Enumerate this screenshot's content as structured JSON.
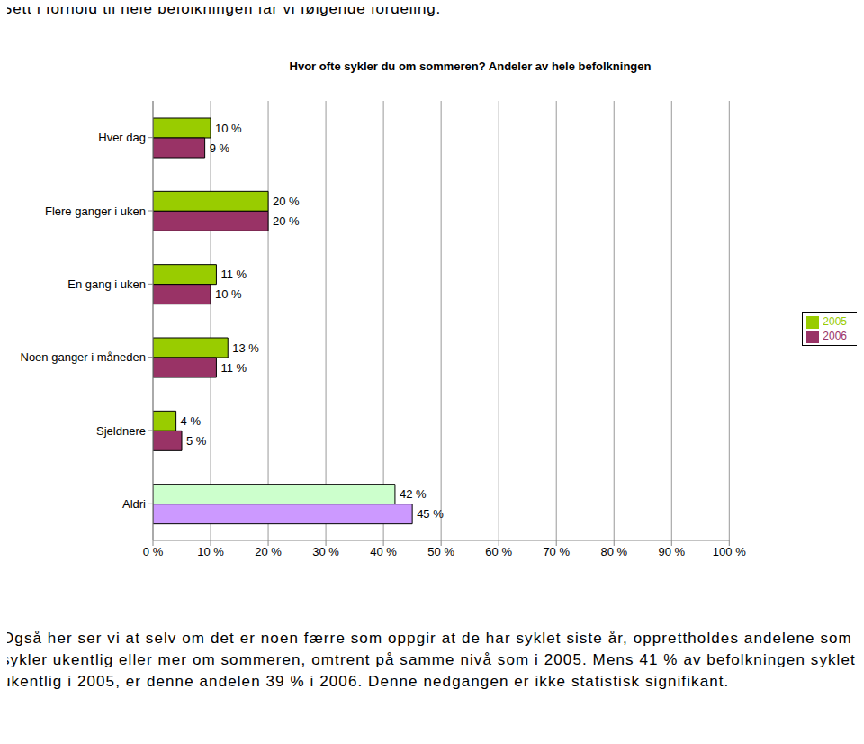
{
  "header": "Sett i forhold til hele befolkningen får vi følgende fordeling.",
  "chart_data": {
    "type": "bar",
    "orientation": "horizontal",
    "title": "Hvor ofte sykler du om sommeren? Andeler av hele befolkningen",
    "categories": [
      "Hver dag",
      "Flere ganger i uken",
      "En gang i uken",
      "Noen ganger i måneden",
      "Sjeldnere",
      "Aldri"
    ],
    "series": [
      {
        "name": "2005",
        "color": "#99cc00",
        "colors": [
          "#99cc00",
          "#99cc00",
          "#99cc00",
          "#99cc00",
          "#99cc00",
          "#ccffcc"
        ],
        "values": [
          10,
          20,
          11,
          13,
          4,
          42
        ],
        "value_labels": [
          "10 %",
          "20 %",
          "11 %",
          "13 %",
          "4 %",
          "42 %"
        ]
      },
      {
        "name": "2006",
        "color": "#993366",
        "colors": [
          "#993366",
          "#993366",
          "#993366",
          "#993366",
          "#993366",
          "#cc99ff"
        ],
        "values": [
          9,
          20,
          10,
          11,
          5,
          45
        ],
        "value_labels": [
          "9 %",
          "20 %",
          "10 %",
          "11 %",
          "5 %",
          "45 %"
        ]
      }
    ],
    "xlim": [
      0,
      100
    ],
    "xticks": [
      {
        "value": 0,
        "label": "0 %"
      },
      {
        "value": 10,
        "label": "10 %"
      },
      {
        "value": 20,
        "label": "20 %"
      },
      {
        "value": 30,
        "label": "30 %"
      },
      {
        "value": 40,
        "label": "40 %"
      },
      {
        "value": 50,
        "label": "50 %"
      },
      {
        "value": 60,
        "label": "60 %"
      },
      {
        "value": 70,
        "label": "70 %"
      },
      {
        "value": 80,
        "label": "80 %"
      },
      {
        "value": 90,
        "label": "90 %"
      },
      {
        "value": 100,
        "label": "100 %"
      }
    ],
    "grid": true,
    "legend": "right",
    "data_labels": true
  },
  "text": "Også her ser vi at selv om det er noen færre som oppgir at de har syklet siste år, opprettholdes andelene som sykler ukentlig eller mer om sommeren, omtrent på samme nivå som i 2005. Mens 41 % av befolkningen syklet ukentlig i 2005, er denne andelen 39 % i 2006. Denne nedgangen er ikke statistisk signifikant."
}
